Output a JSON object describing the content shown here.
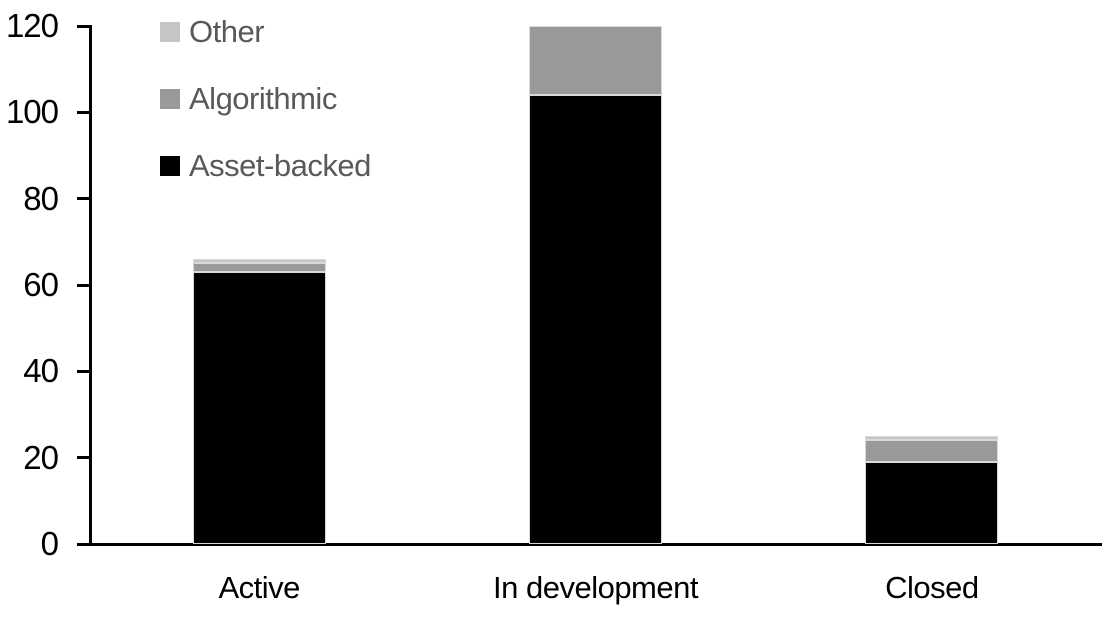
{
  "chart_data": {
    "type": "bar",
    "stacked": true,
    "title": "",
    "xlabel": "",
    "ylabel": "",
    "categories": [
      "Active",
      "In development",
      "Closed"
    ],
    "series": [
      {
        "name": "Asset-backed",
        "color": "#000000",
        "values": [
          63,
          104,
          19
        ]
      },
      {
        "name": "Algorithmic",
        "color": "#999999",
        "values": [
          2,
          16,
          5
        ]
      },
      {
        "name": "Other",
        "color": "#c6c6c6",
        "values": [
          1,
          0,
          1
        ]
      }
    ],
    "totals": [
      66,
      120,
      25
    ],
    "ylim": [
      0,
      120
    ],
    "yticks": [
      0,
      20,
      40,
      60,
      80,
      100,
      120
    ],
    "grid": false,
    "legend_position": "top-left",
    "legend_series_order": [
      2,
      1,
      0
    ],
    "segment_border_color": "#d9d9d9",
    "axis_color": "#000000",
    "legend_text_color": "#595959"
  }
}
